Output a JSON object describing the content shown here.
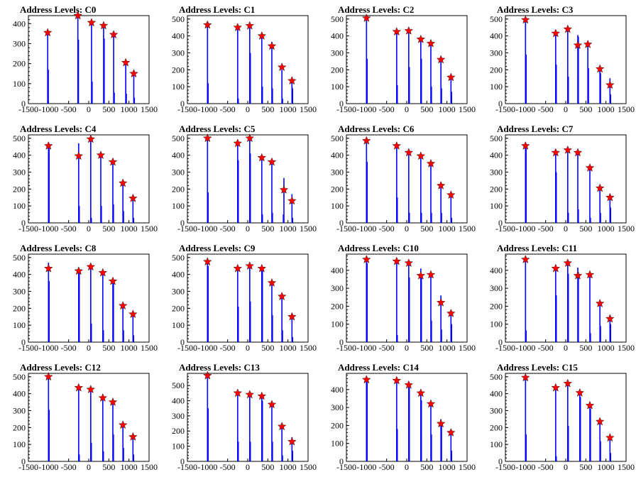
{
  "colors": {
    "stem": "#0000ff",
    "marker": "#ff0000",
    "marker_outline": "#000000",
    "frame": "#000000"
  },
  "chart_data": [
    {
      "type": "bar",
      "title": "Address Levels: C0",
      "xlim": [
        -1500,
        1500
      ],
      "ylim": [
        0,
        440
      ],
      "xticks": [
        "-1500",
        "-1000",
        "-500",
        "0",
        "500",
        "1000",
        "1500"
      ],
      "yticks": [
        "0",
        "100",
        "200",
        "300",
        "400"
      ],
      "peaks_x": [
        -1020,
        -270,
        70,
        370,
        620,
        920,
        1120
      ],
      "marker_values": [
        355,
        440,
        405,
        390,
        345,
        205,
        150
      ],
      "bar_values": [
        350,
        440,
        400,
        385,
        340,
        215,
        155
      ],
      "minor_x": [
        -1000,
        -250,
        90,
        390,
        640,
        940,
        1140
      ],
      "minor_values": [
        170,
        320,
        110,
        325,
        55,
        50,
        30
      ]
    },
    {
      "type": "bar",
      "title": "Address Levels: C1",
      "xlim": [
        -1500,
        1500
      ],
      "ylim": [
        0,
        520
      ],
      "xticks": [
        "-1500",
        "-1000",
        "-500",
        "0",
        "500",
        "1000",
        "1500"
      ],
      "yticks": [
        "0",
        "100",
        "200",
        "300",
        "400",
        "500"
      ],
      "peaks_x": [
        -1000,
        -250,
        50,
        350,
        600,
        850,
        1100
      ],
      "marker_values": [
        465,
        450,
        460,
        400,
        340,
        215,
        135
      ],
      "bar_values": [
        460,
        445,
        470,
        395,
        365,
        200,
        140
      ],
      "minor_x": [
        -980,
        -230,
        70,
        370,
        620,
        870,
        1120
      ],
      "minor_values": [
        120,
        30,
        300,
        100,
        90,
        30,
        90
      ]
    },
    {
      "type": "bar",
      "title": "Address Levels: C2",
      "xlim": [
        -1500,
        1500
      ],
      "ylim": [
        0,
        520
      ],
      "xticks": [
        "-1500",
        "-1000",
        "-500",
        "0",
        "500",
        "1000",
        "1500"
      ],
      "yticks": [
        "0",
        "100",
        "200",
        "300",
        "400",
        "500"
      ],
      "peaks_x": [
        -1000,
        -250,
        50,
        350,
        600,
        850,
        1100
      ],
      "marker_values": [
        505,
        425,
        430,
        380,
        355,
        260,
        155
      ],
      "bar_values": [
        500,
        420,
        425,
        375,
        350,
        255,
        150
      ],
      "minor_x": [
        -980,
        -230,
        70,
        370,
        620,
        870,
        1120
      ],
      "minor_values": [
        265,
        110,
        215,
        265,
        100,
        90,
        70
      ]
    },
    {
      "type": "bar",
      "title": "Address Levels: C3",
      "xlim": [
        -1500,
        1500
      ],
      "ylim": [
        0,
        520
      ],
      "xticks": [
        "-1500",
        "-1000",
        "-500",
        "0",
        "500",
        "1000",
        "1500"
      ],
      "yticks": [
        "0",
        "100",
        "200",
        "300",
        "400",
        "500"
      ],
      "peaks_x": [
        -1000,
        -250,
        50,
        300,
        550,
        850,
        1100
      ],
      "marker_values": [
        495,
        415,
        440,
        345,
        350,
        205,
        110
      ],
      "bar_values": [
        490,
        410,
        460,
        405,
        345,
        200,
        150
      ],
      "minor_x": [
        -980,
        -230,
        70,
        320,
        570,
        870,
        1120
      ],
      "minor_values": [
        290,
        230,
        160,
        395,
        210,
        180,
        55
      ]
    },
    {
      "type": "bar",
      "title": "Address Levels: C4",
      "xlim": [
        -1500,
        1500
      ],
      "ylim": [
        0,
        520
      ],
      "xticks": [
        "-1500",
        "-1000",
        "-500",
        "0",
        "500",
        "1000",
        "1500"
      ],
      "yticks": [
        "0",
        "100",
        "200",
        "300",
        "400",
        "500"
      ],
      "peaks_x": [
        -1000,
        -250,
        50,
        300,
        600,
        850,
        1100
      ],
      "marker_values": [
        455,
        395,
        495,
        400,
        360,
        235,
        145
      ],
      "bar_values": [
        450,
        470,
        490,
        395,
        355,
        230,
        140
      ],
      "minor_x": [
        -980,
        -230,
        70,
        320,
        620,
        870,
        1120
      ],
      "minor_values": [
        445,
        100,
        30,
        100,
        110,
        70,
        30
      ]
    },
    {
      "type": "bar",
      "title": "Address Levels: C5",
      "xlim": [
        -1500,
        1500
      ],
      "ylim": [
        0,
        520
      ],
      "xticks": [
        "-1500",
        "-1000",
        "-500",
        "0",
        "500",
        "1000",
        "1500"
      ],
      "yticks": [
        "0",
        "100",
        "200",
        "300",
        "400",
        "500"
      ],
      "peaks_x": [
        -1000,
        -250,
        50,
        350,
        600,
        900,
        1100
      ],
      "marker_values": [
        500,
        470,
        500,
        385,
        360,
        195,
        130
      ],
      "bar_values": [
        495,
        465,
        495,
        380,
        355,
        265,
        170
      ],
      "minor_x": [
        -980,
        -230,
        70,
        370,
        620,
        880,
        1120
      ],
      "minor_values": [
        180,
        370,
        410,
        50,
        60,
        50,
        30
      ]
    },
    {
      "type": "bar",
      "title": "Address Levels: C6",
      "xlim": [
        -1500,
        1500
      ],
      "ylim": [
        0,
        520
      ],
      "xticks": [
        "-1500",
        "-1000",
        "-500",
        "0",
        "500",
        "1000",
        "1500"
      ],
      "yticks": [
        "0",
        "100",
        "200",
        "300",
        "400",
        "500"
      ],
      "peaks_x": [
        -1000,
        -250,
        50,
        350,
        600,
        850,
        1100
      ],
      "marker_values": [
        485,
        455,
        415,
        395,
        350,
        220,
        165
      ],
      "bar_values": [
        480,
        450,
        410,
        390,
        345,
        215,
        160
      ],
      "minor_x": [
        -980,
        -230,
        70,
        370,
        620,
        870,
        1120
      ],
      "minor_values": [
        360,
        150,
        60,
        60,
        60,
        60,
        30
      ]
    },
    {
      "type": "bar",
      "title": "Address Levels: C7",
      "xlim": [
        -1500,
        1500
      ],
      "ylim": [
        0,
        520
      ],
      "xticks": [
        "-1500",
        "-1000",
        "-500",
        "0",
        "500",
        "1000",
        "1500"
      ],
      "yticks": [
        "0",
        "100",
        "200",
        "300",
        "400",
        "500"
      ],
      "peaks_x": [
        -1000,
        -250,
        50,
        300,
        600,
        850,
        1100
      ],
      "marker_values": [
        455,
        415,
        430,
        415,
        325,
        205,
        150
      ],
      "bar_values": [
        450,
        410,
        425,
        410,
        320,
        200,
        145
      ],
      "minor_x": [
        -980,
        -230,
        70,
        320,
        620,
        870,
        1120
      ],
      "minor_values": [
        440,
        300,
        60,
        80,
        30,
        60,
        90
      ]
    },
    {
      "type": "bar",
      "title": "Address Levels: C8",
      "xlim": [
        -1500,
        1500
      ],
      "ylim": [
        0,
        520
      ],
      "xticks": [
        "-1500",
        "-1000",
        "-500",
        "0",
        "500",
        "1000",
        "1500"
      ],
      "yticks": [
        "0",
        "100",
        "200",
        "300",
        "400",
        "500"
      ],
      "peaks_x": [
        -1000,
        -250,
        50,
        350,
        600,
        850,
        1100
      ],
      "marker_values": [
        435,
        420,
        445,
        410,
        360,
        215,
        165
      ],
      "bar_values": [
        470,
        415,
        440,
        405,
        355,
        210,
        160
      ],
      "minor_x": [
        -980,
        -230,
        70,
        370,
        620,
        870,
        1120
      ],
      "minor_values": [
        360,
        420,
        110,
        70,
        360,
        70,
        40
      ]
    },
    {
      "type": "bar",
      "title": "Address Levels: C9",
      "xlim": [
        -1500,
        1500
      ],
      "ylim": [
        0,
        520
      ],
      "xticks": [
        "-1500",
        "-1000",
        "-500",
        "0",
        "500",
        "1000",
        "1500"
      ],
      "yticks": [
        "0",
        "100",
        "200",
        "300",
        "400",
        "500"
      ],
      "peaks_x": [
        -1000,
        -250,
        50,
        350,
        600,
        850,
        1100
      ],
      "marker_values": [
        475,
        435,
        450,
        435,
        350,
        270,
        150
      ],
      "bar_values": [
        470,
        430,
        445,
        430,
        345,
        265,
        145
      ],
      "minor_x": [
        -980,
        -230,
        70,
        370,
        620,
        870,
        1120
      ],
      "minor_values": [
        450,
        210,
        240,
        420,
        160,
        70,
        30
      ]
    },
    {
      "type": "bar",
      "title": "Address Levels: C10",
      "xlim": [
        -1500,
        1500
      ],
      "ylim": [
        0,
        490
      ],
      "xticks": [
        "-1500",
        "-1000",
        "-500",
        "0",
        "500",
        "1000",
        "1500"
      ],
      "yticks": [
        "0",
        "100",
        "200",
        "300",
        "400"
      ],
      "peaks_x": [
        -1000,
        -250,
        50,
        350,
        600,
        850,
        1100
      ],
      "marker_values": [
        460,
        450,
        440,
        370,
        375,
        220,
        160
      ],
      "bar_values": [
        455,
        445,
        435,
        410,
        370,
        260,
        155
      ],
      "minor_x": [
        -980,
        -230,
        70,
        370,
        620,
        870,
        1120
      ],
      "minor_values": [
        440,
        40,
        360,
        370,
        120,
        70,
        100
      ]
    },
    {
      "type": "bar",
      "title": "Address Levels: C11",
      "xlim": [
        -1500,
        1500
      ],
      "ylim": [
        0,
        490
      ],
      "xticks": [
        "-1500",
        "-1000",
        "-500",
        "0",
        "500",
        "1000",
        "1500"
      ],
      "yticks": [
        "0",
        "100",
        "200",
        "300",
        "400"
      ],
      "peaks_x": [
        -1000,
        -250,
        50,
        300,
        600,
        850,
        1100
      ],
      "marker_values": [
        460,
        410,
        440,
        370,
        375,
        215,
        130
      ],
      "bar_values": [
        455,
        430,
        435,
        415,
        370,
        210,
        150
      ],
      "minor_x": [
        -980,
        -230,
        70,
        320,
        620,
        870,
        1120
      ],
      "minor_values": [
        65,
        260,
        380,
        390,
        50,
        90,
        100
      ]
    },
    {
      "type": "bar",
      "title": "Address Levels: C12",
      "xlim": [
        -1500,
        1500
      ],
      "ylim": [
        0,
        520
      ],
      "xticks": [
        "-1500",
        "-1000",
        "-500",
        "0",
        "500",
        "1000",
        "1500"
      ],
      "yticks": [
        "0",
        "100",
        "200",
        "300",
        "400",
        "500"
      ],
      "peaks_x": [
        -1000,
        -250,
        50,
        350,
        600,
        850,
        1100
      ],
      "marker_values": [
        500,
        435,
        425,
        375,
        350,
        215,
        145
      ],
      "bar_values": [
        495,
        430,
        420,
        395,
        345,
        210,
        140
      ],
      "minor_x": [
        -980,
        -230,
        70,
        370,
        620,
        870,
        1120
      ],
      "minor_values": [
        305,
        40,
        110,
        60,
        160,
        80,
        40
      ]
    },
    {
      "type": "bar",
      "title": "Address Levels: C13",
      "xlim": [
        -1500,
        1500
      ],
      "ylim": [
        0,
        580
      ],
      "xticks": [
        "-1500",
        "-1000",
        "-500",
        "0",
        "500",
        "1000",
        "1500"
      ],
      "yticks": [
        "0",
        "100",
        "200",
        "300",
        "400",
        "500"
      ],
      "peaks_x": [
        -1000,
        -250,
        50,
        350,
        600,
        850,
        1100
      ],
      "marker_values": [
        565,
        450,
        440,
        430,
        375,
        230,
        130
      ],
      "bar_values": [
        560,
        445,
        435,
        425,
        370,
        225,
        160
      ],
      "minor_x": [
        -980,
        -230,
        70,
        370,
        620,
        870,
        1120
      ],
      "minor_values": [
        350,
        130,
        130,
        400,
        130,
        40,
        70
      ]
    },
    {
      "type": "bar",
      "title": "Address Levels: C14",
      "xlim": [
        -1500,
        1500
      ],
      "ylim": [
        0,
        490
      ],
      "xticks": [
        "-1500",
        "-1000",
        "-500",
        "0",
        "500",
        "1000",
        "1500"
      ],
      "yticks": [
        "0",
        "100",
        "200",
        "300",
        "400"
      ],
      "peaks_x": [
        -1000,
        -250,
        50,
        350,
        600,
        850,
        1100
      ],
      "marker_values": [
        455,
        450,
        425,
        380,
        320,
        210,
        160
      ],
      "bar_values": [
        450,
        445,
        420,
        375,
        315,
        235,
        155
      ],
      "minor_x": [
        -980,
        -230,
        70,
        370,
        620,
        870,
        1120
      ],
      "minor_values": [
        440,
        180,
        410,
        340,
        150,
        200,
        60
      ]
    },
    {
      "type": "bar",
      "title": "Address Levels: C15",
      "xlim": [
        -1500,
        1500
      ],
      "ylim": [
        0,
        520
      ],
      "xticks": [
        "-1500",
        "-1000",
        "-500",
        "0",
        "500",
        "1000",
        "1500"
      ],
      "yticks": [
        "0",
        "100",
        "200",
        "300",
        "400",
        "500"
      ],
      "peaks_x": [
        -1000,
        -250,
        50,
        350,
        600,
        850,
        1100
      ],
      "marker_values": [
        495,
        435,
        460,
        405,
        330,
        235,
        140
      ],
      "bar_values": [
        490,
        430,
        455,
        400,
        350,
        230,
        135
      ],
      "minor_x": [
        -980,
        -230,
        70,
        370,
        620,
        870,
        1120
      ],
      "minor_values": [
        160,
        30,
        210,
        380,
        310,
        120,
        50
      ]
    }
  ]
}
